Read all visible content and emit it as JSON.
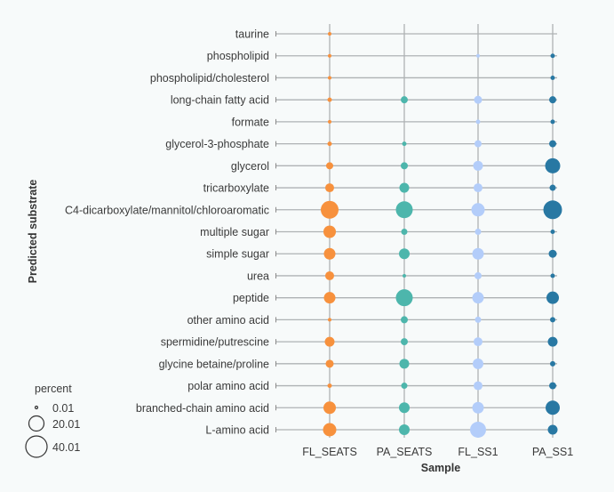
{
  "chart_data": {
    "type": "scatter",
    "subtype": "bubble",
    "title": "",
    "xlabel": "Sample",
    "ylabel": "Predicted substrate",
    "x_categories": [
      "FL_SEATS",
      "PA_SEATS",
      "FL_SS1",
      "PA_SS1"
    ],
    "y_categories": [
      "taurine",
      "phospholipid",
      "phospholipid/cholesterol",
      "long-chain fatty acid",
      "formate",
      "glycerol-3-phosphate",
      "glycerol",
      "tricarboxylate",
      "C4-dicarboxylate/mannitol/chloroaromatic",
      "multiple sugar",
      "simple sugar",
      "urea",
      "peptide",
      "other amino acid",
      "spermidine/putrescine",
      "glycine betaine/proline",
      "polar amino acid",
      "branched-chain amino acid",
      "L-amino acid"
    ],
    "series": [
      {
        "name": "FL_SEATS",
        "color": "#f7913d",
        "values": [
          1.1,
          1.1,
          1.1,
          1.7,
          1.1,
          1.7,
          4.4,
          6.9,
          27.7,
          13.6,
          11.7,
          6.9,
          11.7,
          1.1,
          8.4,
          5.6,
          1.7,
          13.6,
          15.6
        ]
      },
      {
        "name": "PA_SEATS",
        "color": "#4db6ac",
        "values": [
          0,
          0,
          0,
          4.4,
          0,
          1.7,
          4.4,
          8.4,
          25.0,
          3.4,
          10.0,
          1.1,
          25.0,
          4.4,
          4.4,
          8.4,
          3.4,
          10.0,
          10.0
        ]
      },
      {
        "name": "FL_SS1",
        "color": "#b3cdfa",
        "values": [
          0,
          1.1,
          0,
          5.6,
          1.7,
          4.4,
          8.4,
          6.9,
          15.6,
          3.4,
          11.7,
          4.4,
          11.7,
          3.4,
          6.9,
          10.0,
          6.9,
          11.7,
          22.4
        ]
      },
      {
        "name": "PA_SS1",
        "color": "#2878a3",
        "values": [
          0,
          1.7,
          1.7,
          4.4,
          1.7,
          4.4,
          20.0,
          3.4,
          30.5,
          1.7,
          5.6,
          1.7,
          13.6,
          2.5,
          8.4,
          2.5,
          4.4,
          17.7,
          8.4
        ]
      }
    ],
    "size_legend": {
      "title": "percent",
      "entries": [
        0.01,
        20.01,
        40.01
      ],
      "labels": [
        "0.01",
        "20.01",
        "40.01"
      ],
      "position": "bottom-left"
    },
    "grid": true
  }
}
